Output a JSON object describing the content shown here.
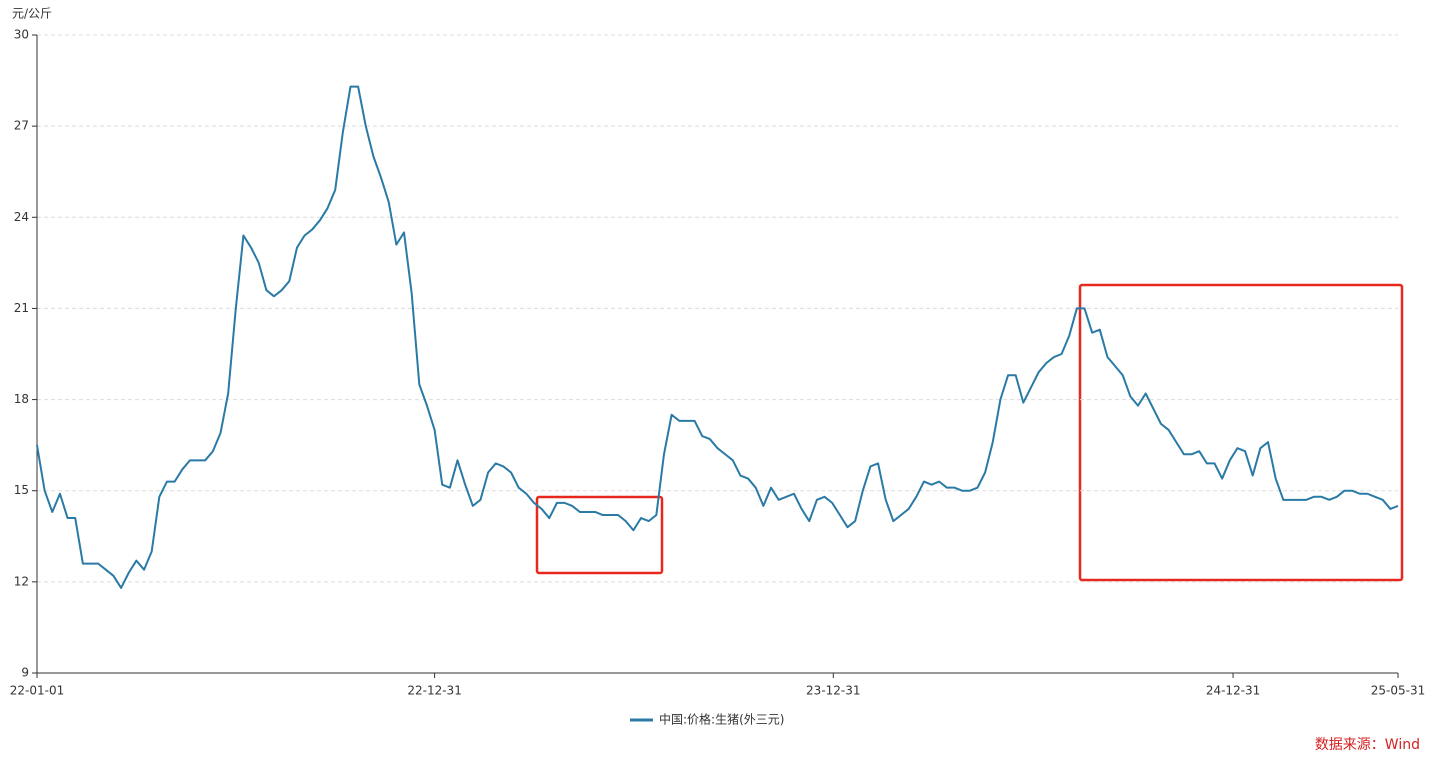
{
  "chart_data": {
    "type": "line",
    "y_label": "元/公斤",
    "source": "数据来源：Wind",
    "x": [
      "2022-01-01",
      "2022-01-08",
      "2022-01-15",
      "2022-01-22",
      "2022-01-29",
      "2022-02-05",
      "2022-02-12",
      "2022-02-19",
      "2022-02-26",
      "2022-03-05",
      "2022-03-12",
      "2022-03-19",
      "2022-03-26",
      "2022-04-02",
      "2022-04-09",
      "2022-04-16",
      "2022-04-23",
      "2022-04-30",
      "2022-05-07",
      "2022-05-14",
      "2022-05-21",
      "2022-05-28",
      "2022-06-04",
      "2022-06-11",
      "2022-06-18",
      "2022-06-25",
      "2022-07-02",
      "2022-07-09",
      "2022-07-16",
      "2022-07-23",
      "2022-07-30",
      "2022-08-06",
      "2022-08-13",
      "2022-08-20",
      "2022-08-27",
      "2022-09-03",
      "2022-09-10",
      "2022-09-17",
      "2022-09-24",
      "2022-10-01",
      "2022-10-08",
      "2022-10-15",
      "2022-10-22",
      "2022-10-29",
      "2022-11-05",
      "2022-11-12",
      "2022-11-19",
      "2022-11-26",
      "2022-12-03",
      "2022-12-10",
      "2022-12-17",
      "2022-12-24",
      "2022-12-31",
      "2023-01-07",
      "2023-01-14",
      "2023-01-21",
      "2023-01-28",
      "2023-02-04",
      "2023-02-11",
      "2023-02-18",
      "2023-02-25",
      "2023-03-04",
      "2023-03-11",
      "2023-03-18",
      "2023-03-25",
      "2023-04-01",
      "2023-04-08",
      "2023-04-15",
      "2023-04-22",
      "2023-04-29",
      "2023-05-06",
      "2023-05-13",
      "2023-05-20",
      "2023-05-27",
      "2023-06-03",
      "2023-06-10",
      "2023-06-17",
      "2023-06-24",
      "2023-07-01",
      "2023-07-08",
      "2023-07-15",
      "2023-07-22",
      "2023-07-29",
      "2023-08-05",
      "2023-08-12",
      "2023-08-19",
      "2023-08-26",
      "2023-09-02",
      "2023-09-09",
      "2023-09-16",
      "2023-09-23",
      "2023-09-30",
      "2023-10-07",
      "2023-10-14",
      "2023-10-21",
      "2023-10-28",
      "2023-11-04",
      "2023-11-11",
      "2023-11-18",
      "2023-11-25",
      "2023-12-02",
      "2023-12-09",
      "2023-12-16",
      "2023-12-23",
      "2023-12-30",
      "2024-01-06",
      "2024-01-13",
      "2024-01-20",
      "2024-01-27",
      "2024-02-03",
      "2024-02-10",
      "2024-02-17",
      "2024-02-24",
      "2024-03-02",
      "2024-03-09",
      "2024-03-16",
      "2024-03-23",
      "2024-03-30",
      "2024-04-06",
      "2024-04-13",
      "2024-04-20",
      "2024-04-27",
      "2024-05-04",
      "2024-05-11",
      "2024-05-18",
      "2024-05-25",
      "2024-06-01",
      "2024-06-08",
      "2024-06-15",
      "2024-06-22",
      "2024-06-29",
      "2024-07-06",
      "2024-07-13",
      "2024-07-20",
      "2024-07-27",
      "2024-08-03",
      "2024-08-10",
      "2024-08-17",
      "2024-08-24",
      "2024-08-31",
      "2024-09-07",
      "2024-09-14",
      "2024-09-21",
      "2024-09-28",
      "2024-10-05",
      "2024-10-12",
      "2024-10-19",
      "2024-10-26",
      "2024-11-02",
      "2024-11-09",
      "2024-11-16",
      "2024-11-23",
      "2024-11-30",
      "2024-12-07",
      "2024-12-14",
      "2024-12-21",
      "2024-12-28",
      "2025-01-04",
      "2025-01-11",
      "2025-01-18",
      "2025-01-25",
      "2025-02-01",
      "2025-02-08",
      "2025-02-15",
      "2025-02-22",
      "2025-03-01",
      "2025-03-08",
      "2025-03-15",
      "2025-03-22",
      "2025-03-29",
      "2025-04-05",
      "2025-04-12",
      "2025-04-19",
      "2025-04-26",
      "2025-05-03",
      "2025-05-10",
      "2025-05-17",
      "2025-05-24",
      "2025-05-31"
    ],
    "series": [
      {
        "name": "中国:价格:生猪(外三元)",
        "color": "#2a7aa6",
        "values": [
          16.5,
          15.0,
          14.3,
          14.9,
          14.1,
          14.1,
          12.6,
          12.6,
          12.6,
          12.4,
          12.2,
          11.8,
          12.3,
          12.7,
          12.4,
          13.0,
          14.8,
          15.3,
          15.3,
          15.7,
          16.0,
          16.0,
          16.0,
          16.3,
          16.9,
          18.2,
          21.0,
          23.4,
          23.0,
          22.5,
          21.6,
          21.4,
          21.6,
          21.9,
          23.0,
          23.4,
          23.6,
          23.9,
          24.3,
          24.9,
          26.8,
          28.3,
          28.3,
          27.0,
          26.0,
          25.3,
          24.5,
          23.1,
          23.5,
          21.5,
          18.5,
          17.8,
          17.0,
          15.2,
          15.1,
          16.0,
          15.2,
          14.5,
          14.7,
          15.6,
          15.9,
          15.8,
          15.6,
          15.1,
          14.9,
          14.6,
          14.4,
          14.1,
          14.6,
          14.6,
          14.5,
          14.3,
          14.3,
          14.3,
          14.2,
          14.2,
          14.2,
          14.0,
          13.7,
          14.1,
          14.0,
          14.2,
          16.2,
          17.5,
          17.3,
          17.3,
          17.3,
          16.8,
          16.7,
          16.4,
          16.2,
          16.0,
          15.5,
          15.4,
          15.1,
          14.5,
          15.1,
          14.7,
          14.8,
          14.9,
          14.4,
          14.0,
          14.7,
          14.8,
          14.6,
          14.2,
          13.8,
          14.0,
          15.0,
          15.8,
          15.9,
          14.7,
          14.0,
          14.2,
          14.4,
          14.8,
          15.3,
          15.2,
          15.3,
          15.1,
          15.1,
          15.0,
          15.0,
          15.1,
          15.6,
          16.6,
          18.0,
          18.8,
          18.8,
          17.9,
          18.4,
          18.9,
          19.2,
          19.4,
          19.5,
          20.1,
          21.0,
          21.0,
          20.2,
          20.3,
          19.4,
          19.1,
          18.8,
          18.1,
          17.8,
          18.2,
          17.7,
          17.2,
          17.0,
          16.6,
          16.2,
          16.2,
          16.3,
          15.9,
          15.9,
          15.4,
          16.0,
          16.4,
          16.3,
          15.5,
          16.4,
          16.6,
          15.4,
          14.7,
          14.7,
          14.7,
          14.7,
          14.8,
          14.8,
          14.7,
          14.8,
          15.0,
          15.0,
          14.9,
          14.9,
          14.8,
          14.7,
          14.4,
          14.5
        ]
      }
    ],
    "xlim": [
      "2022-01-01",
      "2025-05-31"
    ],
    "xticks": [
      {
        "value": "2022-01-01",
        "label": "22-01-01"
      },
      {
        "value": "2022-12-31",
        "label": "22-12-31"
      },
      {
        "value": "2023-12-31",
        "label": "23-12-31"
      },
      {
        "value": "2024-12-31",
        "label": "24-12-31"
      },
      {
        "value": "2025-05-31",
        "label": "25-05-31"
      }
    ],
    "ylim": [
      9,
      30
    ],
    "yticks": [
      9,
      12,
      15,
      18,
      21,
      24,
      27,
      30
    ],
    "grid": true
  }
}
